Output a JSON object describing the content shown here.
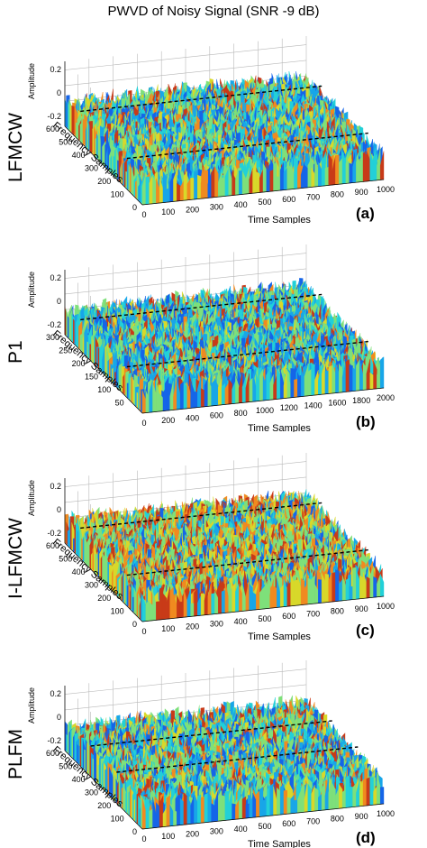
{
  "figure": {
    "title": "PWVD of Noisy Signal (SNR -9 dB)"
  },
  "colors": {
    "surface": [
      "#1565e8",
      "#18a6e8",
      "#22d0d8",
      "#7ee07a",
      "#d8d82a",
      "#f08a20",
      "#c83a18"
    ],
    "ridge": "#000000",
    "grid": "#b8b8b8"
  },
  "chart_data": [
    {
      "type": "surface3d",
      "panel": "(a)",
      "row_label": "LFMCW",
      "xlabel": "Time Samples",
      "ylabel": "Frequency Samples",
      "zlabel": "Amplitude",
      "xticks": [
        "0",
        "100",
        "200",
        "300",
        "400",
        "500",
        "600",
        "700",
        "800",
        "900",
        "1000"
      ],
      "yticks": [
        "0",
        "100",
        "200",
        "300",
        "400",
        "500",
        "600"
      ],
      "zticks": [
        "0.2",
        "0",
        "-0.2"
      ],
      "xlim": [
        0,
        1000
      ],
      "ylim": [
        0,
        600
      ],
      "zlim": [
        -0.2,
        0.2
      ],
      "ridges": [
        {
          "x": [
            0,
            1000
          ],
          "y": [
            480,
            480
          ]
        },
        {
          "x": [
            0,
            1000
          ],
          "y": [
            120,
            120
          ]
        }
      ],
      "warmth": 0.35
    },
    {
      "type": "surface3d",
      "panel": "(b)",
      "row_label": "P1",
      "xlabel": "Time Samples",
      "ylabel": "Frequency Samples",
      "zlabel": "Amplitude",
      "xticks": [
        "0",
        "200",
        "400",
        "600",
        "800",
        "1000",
        "1200",
        "1400",
        "1600",
        "1800",
        "2000"
      ],
      "yticks": [
        "50",
        "100",
        "150",
        "200",
        "250",
        "300"
      ],
      "zticks": [
        "0.2",
        "0",
        "-0.2"
      ],
      "xlim": [
        0,
        2000
      ],
      "ylim": [
        0,
        300
      ],
      "zlim": [
        -0.2,
        0.2
      ],
      "ridges": [
        {
          "x": [
            0,
            2000
          ],
          "y": [
            240,
            240
          ]
        },
        {
          "x": [
            0,
            2000
          ],
          "y": [
            60,
            60
          ]
        }
      ],
      "warmth": 0.3
    },
    {
      "type": "surface3d",
      "panel": "(c)",
      "row_label": "I-LFMCW",
      "xlabel": "Time Samples",
      "ylabel": "Frequency Samples",
      "zlabel": "Amplitude",
      "xticks": [
        "0",
        "100",
        "200",
        "300",
        "400",
        "500",
        "600",
        "700",
        "800",
        "900",
        "1000"
      ],
      "yticks": [
        "0",
        "100",
        "200",
        "300",
        "400",
        "500",
        "600"
      ],
      "zticks": [
        "0.2",
        "0",
        "-0.2"
      ],
      "xlim": [
        0,
        1000
      ],
      "ylim": [
        0,
        600
      ],
      "zlim": [
        -0.2,
        0.2
      ],
      "ridges": [
        {
          "x": [
            0,
            1000
          ],
          "y": [
            480,
            480
          ]
        },
        {
          "x": [
            0,
            1000
          ],
          "y": [
            120,
            120
          ]
        }
      ],
      "warmth": 0.65
    },
    {
      "type": "surface3d",
      "panel": "(d)",
      "row_label": "PLFM",
      "xlabel": "Time Samples",
      "ylabel": "Frequency Samples",
      "zlabel": "Amplitude",
      "xticks": [
        "0",
        "100",
        "200",
        "300",
        "400",
        "500",
        "600",
        "700",
        "800",
        "900",
        "1000"
      ],
      "yticks": [
        "0",
        "100",
        "200",
        "300",
        "400",
        "500",
        "600"
      ],
      "zticks": [
        "0.2",
        "0",
        "-0.2"
      ],
      "xlim": [
        0,
        1000
      ],
      "ylim": [
        0,
        600
      ],
      "zlim": [
        -0.2,
        0.2
      ],
      "ridges": [
        {
          "x": [
            0,
            1000
          ],
          "y": [
            400,
            400
          ]
        },
        {
          "x": [
            0,
            1000
          ],
          "y": [
            200,
            200
          ]
        }
      ],
      "warmth": 0.4
    }
  ]
}
